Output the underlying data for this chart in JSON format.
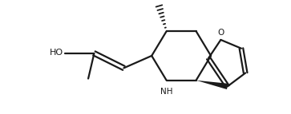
{
  "background": "#ffffff",
  "line_color": "#1a1a1a",
  "bond_width": 1.6,
  "HO_label": "HO",
  "NH_label": "NH",
  "figsize": [
    3.63,
    1.43
  ],
  "dpi": 100,
  "xlim": [
    0.0,
    11.0
  ],
  "ylim": [
    0.2,
    4.8
  ]
}
